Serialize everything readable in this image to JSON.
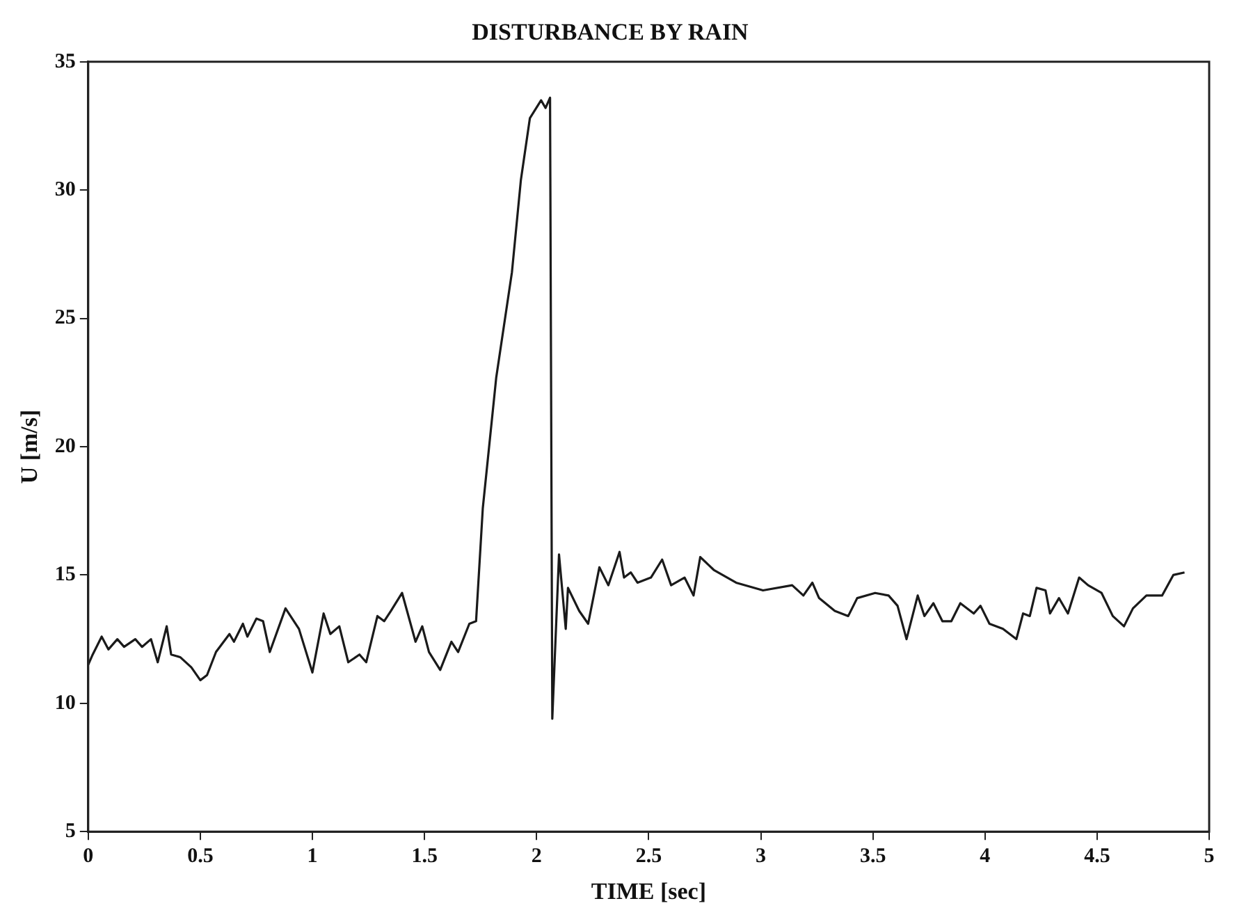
{
  "chart_data": {
    "type": "line",
    "title": "DISTURBANCE BY RAIN",
    "xlabel": "TIME [sec]",
    "ylabel": "U [m/s]",
    "xlim": [
      0,
      5
    ],
    "xticks": [
      0,
      0.5,
      1,
      1.5,
      2,
      2.5,
      3,
      3.5,
      4,
      4.5,
      5
    ],
    "ylim": [
      5,
      35
    ],
    "yticks": [
      5,
      10,
      15,
      20,
      25,
      30,
      35
    ],
    "grid": false,
    "legend": false,
    "marker": "none",
    "line_style": "solid",
    "series": [
      {
        "color": "#1a1a1a",
        "x": [
          0,
          0.02,
          0.06,
          0.09,
          0.13,
          0.16,
          0.21,
          0.24,
          0.28,
          0.31,
          0.35,
          0.37,
          0.41,
          0.46,
          0.5,
          0.53,
          0.57,
          0.63,
          0.65,
          0.69,
          0.71,
          0.75,
          0.78,
          0.81,
          0.88,
          0.94,
          1,
          1.05,
          1.08,
          1.12,
          1.16,
          1.21,
          1.24,
          1.29,
          1.32,
          1.35,
          1.4,
          1.46,
          1.49,
          1.52,
          1.57,
          1.62,
          1.65,
          1.7,
          1.73,
          1.76,
          1.82,
          1.89,
          1.93,
          1.97,
          2.02,
          2.04,
          2.06,
          2.07,
          2.1,
          2.13,
          2.14,
          2.19,
          2.23,
          2.28,
          2.32,
          2.37,
          2.39,
          2.42,
          2.45,
          2.51,
          2.56,
          2.6,
          2.66,
          2.7,
          2.73,
          2.79,
          2.89,
          3.01,
          3.14,
          3.19,
          3.23,
          3.26,
          3.33,
          3.39,
          3.43,
          3.51,
          3.57,
          3.61,
          3.65,
          3.7,
          3.73,
          3.77,
          3.81,
          3.85,
          3.89,
          3.95,
          3.98,
          4.02,
          4.08,
          4.14,
          4.17,
          4.2,
          4.23,
          4.27,
          4.29,
          4.33,
          4.37,
          4.42,
          4.46,
          4.52,
          4.57,
          4.62,
          4.66,
          4.72,
          4.79,
          4.84,
          4.89
        ],
        "values": [
          11.5,
          11.9,
          12.6,
          12.1,
          12.5,
          12.2,
          12.5,
          12.2,
          12.5,
          11.6,
          13,
          11.9,
          11.8,
          11.4,
          10.9,
          11.1,
          12,
          12.7,
          12.4,
          13.1,
          12.6,
          13.3,
          13.2,
          12,
          13.7,
          12.9,
          11.2,
          13.5,
          12.7,
          13,
          11.6,
          11.9,
          11.6,
          13.4,
          13.2,
          13.6,
          14.3,
          12.4,
          13,
          12,
          11.3,
          12.4,
          12,
          13.1,
          13.2,
          17.6,
          22.7,
          26.8,
          30.4,
          32.8,
          33.5,
          33.2,
          33.6,
          9.4,
          15.8,
          12.9,
          14.5,
          13.6,
          13.1,
          15.3,
          14.6,
          15.9,
          14.9,
          15.1,
          14.7,
          14.9,
          15.6,
          14.6,
          14.9,
          14.2,
          15.7,
          15.2,
          14.7,
          14.4,
          14.6,
          14.2,
          14.7,
          14.1,
          13.6,
          13.4,
          14.1,
          14.3,
          14.2,
          13.8,
          12.5,
          14.2,
          13.4,
          13.9,
          13.2,
          13.2,
          13.9,
          13.5,
          13.8,
          13.1,
          12.9,
          12.5,
          13.5,
          13.4,
          14.5,
          14.4,
          13.5,
          14.1,
          13.5,
          14.9,
          14.6,
          14.3,
          13.4,
          13,
          13.7,
          14.2,
          14.2,
          15,
          15.1
        ]
      }
    ]
  }
}
